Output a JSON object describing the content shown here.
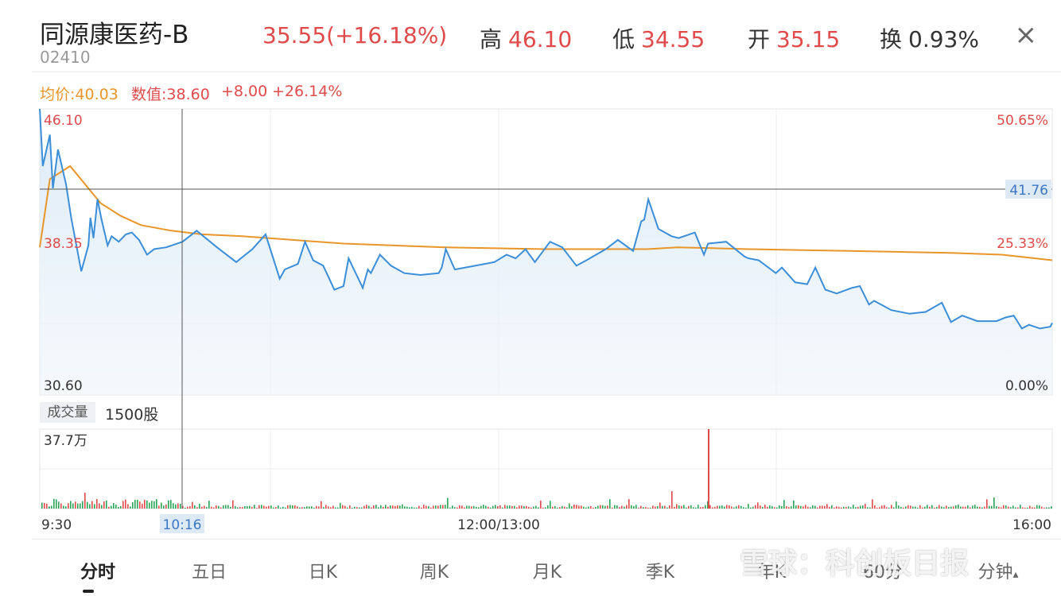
{
  "header": {
    "name": "同源康医药-B",
    "code": "02410",
    "price_change": "35.55(+16.18%)",
    "high_label": "高",
    "high_value": "46.10",
    "low_label": "低",
    "low_value": "34.55",
    "open_label": "开",
    "open_value": "35.15",
    "turnover_label": "换",
    "turnover_value": "0.93%",
    "close_icon": "×"
  },
  "info_line": {
    "avg": "均价:40.03",
    "value": "数值:38.60",
    "change": "+8.00",
    "pct": "+26.14%"
  },
  "price_chart": {
    "left_labels": {
      "top": "46.10",
      "mid": "38.35",
      "bottom": "30.60"
    },
    "right_labels": {
      "top": "50.65%",
      "mid": "25.33%",
      "bottom": "0.00%"
    },
    "crosshair_value": "41.76",
    "crosshair_time": "10:16"
  },
  "volume_chart": {
    "title": "成交量",
    "unit": "1500股",
    "max_label": "37.7万"
  },
  "time_axis": {
    "start": "9:30",
    "mid": "12:00/13:00",
    "end": "16:00"
  },
  "tabs": [
    {
      "label": "分时"
    },
    {
      "label": "五日"
    },
    {
      "label": "日K"
    },
    {
      "label": "周K"
    },
    {
      "label": "月K"
    },
    {
      "label": "季K"
    },
    {
      "label": "年K"
    },
    {
      "label": "60分"
    },
    {
      "label": "分钟"
    }
  ],
  "watermark": "雪球：科创板日报",
  "colors": {
    "up": "#e04a4a",
    "down": "#2aa55a",
    "price_line": "#3b8ed8",
    "avg_line": "#e8962a"
  },
  "chart_data": {
    "type": "line",
    "ylim": [
      30.6,
      46.1
    ],
    "series": [
      {
        "name": "",
        "x_fraction": [
          0,
          0.003,
          0.01,
          0.013,
          0.018,
          0.026,
          0.031,
          0.041,
          0.048,
          0.05,
          0.053,
          0.057,
          0.061,
          0.067,
          0.071,
          0.078,
          0.085,
          0.091,
          0.098,
          0.106,
          0.113,
          0.125,
          0.141,
          0.155,
          0.175,
          0.194,
          0.21,
          0.223,
          0.237,
          0.242,
          0.255,
          0.262,
          0.27,
          0.28,
          0.291,
          0.3,
          0.305,
          0.319,
          0.324,
          0.327,
          0.336,
          0.347,
          0.36,
          0.376,
          0.394,
          0.397,
          0.401,
          0.41,
          0.43,
          0.449,
          0.461,
          0.47,
          0.48,
          0.481,
          0.489,
          0.504,
          0.516,
          0.53,
          0.54,
          0.559,
          0.571,
          0.586,
          0.594,
          0.597,
          0.601,
          0.611,
          0.624,
          0.631,
          0.647,
          0.656,
          0.66,
          0.678,
          0.696,
          0.7,
          0.71,
          0.727,
          0.733,
          0.746,
          0.758,
          0.766,
          0.776,
          0.787,
          0.802,
          0.81,
          0.819,
          0.824,
          0.841,
          0.859,
          0.875,
          0.891,
          0.9,
          0.911,
          0.926,
          0.945,
          0.954,
          0.962,
          0.97,
          0.977,
          0.988,
          0.998,
          1.0
        ],
        "values": [
          46.1,
          43.0,
          44.7,
          41.8,
          43.9,
          42.0,
          40.2,
          37.3,
          38.7,
          40.2,
          39.1,
          41.2,
          40.1,
          38.7,
          39.2,
          38.9,
          39.3,
          39.4,
          39.0,
          38.2,
          38.5,
          38.6,
          38.9,
          39.5,
          38.6,
          37.8,
          38.5,
          39.3,
          36.9,
          37.4,
          37.7,
          38.9,
          37.9,
          37.6,
          36.3,
          36.5,
          38.0,
          36.4,
          37.4,
          37.2,
          38.2,
          37.6,
          37.2,
          37.1,
          37.2,
          37.5,
          38.5,
          37.4,
          37.6,
          37.8,
          38.2,
          38.0,
          38.5,
          38.4,
          37.8,
          38.9,
          38.6,
          37.6,
          37.9,
          38.5,
          39.0,
          38.4,
          40.0,
          40.1,
          41.2,
          39.6,
          39.2,
          39.1,
          39.4,
          38.2,
          38.8,
          38.9,
          38.1,
          38.0,
          37.9,
          37.2,
          37.5,
          36.7,
          36.6,
          37.5,
          36.3,
          36.1,
          36.4,
          36.5,
          35.5,
          35.7,
          35.2,
          35.0,
          35.1,
          35.6,
          34.55,
          34.9,
          34.6,
          34.6,
          34.8,
          34.9,
          34.2,
          34.4,
          34.2,
          34.3,
          34.5
        ]
      },
      {
        "name": "",
        "x_fraction": [
          0,
          0.01,
          0.03,
          0.06,
          0.08,
          0.1,
          0.13,
          0.16,
          0.2,
          0.25,
          0.3,
          0.35,
          0.4,
          0.5,
          0.6,
          0.63,
          0.7,
          0.8,
          0.9,
          0.95,
          1.0
        ],
        "values": [
          38.6,
          42.3,
          43.0,
          41.0,
          40.3,
          39.8,
          39.5,
          39.3,
          39.2,
          39.0,
          38.8,
          38.7,
          38.6,
          38.5,
          38.5,
          38.6,
          38.5,
          38.4,
          38.3,
          38.2,
          37.9
        ]
      }
    ]
  }
}
